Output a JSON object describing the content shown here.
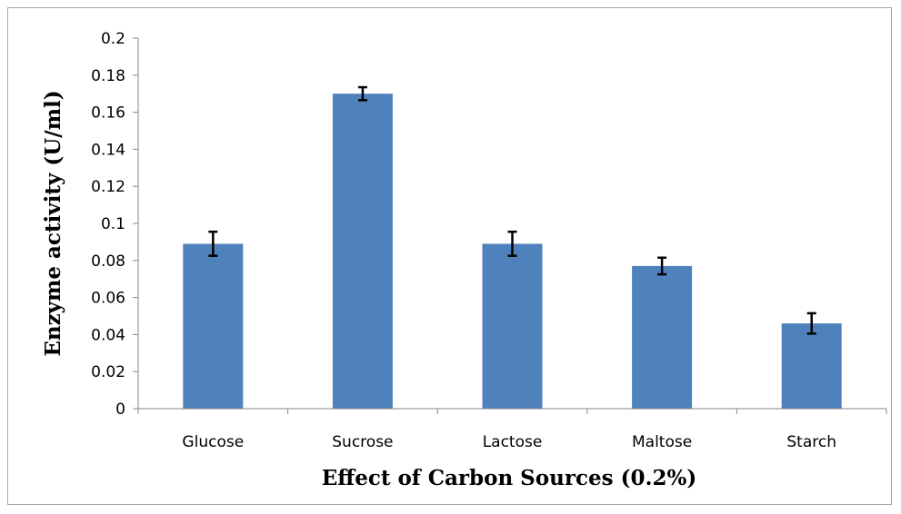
{
  "chart_data": {
    "type": "bar",
    "title": "",
    "xlabel": "Effect of Carbon Sources (0.2%)",
    "ylabel": "Enzyme activity (U/ml)",
    "categories": [
      "Glucose",
      "Sucrose",
      "Lactose",
      "Maltose",
      "Starch"
    ],
    "values": [
      0.089,
      0.17,
      0.089,
      0.077,
      0.046
    ],
    "errors": [
      0.0065,
      0.0035,
      0.0065,
      0.0045,
      0.0055
    ],
    "ylim": [
      0,
      0.2
    ],
    "yticks": [
      "0",
      "0.02",
      "0.04",
      "0.06",
      "0.08",
      "0.1",
      "0.12",
      "0.14",
      "0.16",
      "0.18",
      "0.2"
    ],
    "grid": false,
    "legend": "none",
    "bar_color": "#4f81bd",
    "error_bar_color": "#000000"
  }
}
